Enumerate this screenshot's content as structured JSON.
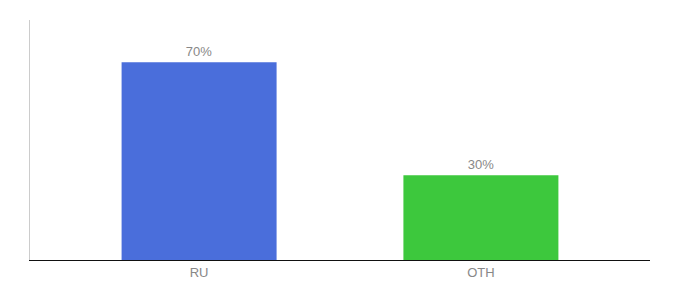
{
  "chart_data": {
    "type": "bar",
    "categories": [
      "RU",
      "OTH"
    ],
    "values": [
      70,
      30
    ],
    "value_labels": [
      "70%",
      "30%"
    ],
    "colors": [
      "#4a6edb",
      "#3dc83d"
    ],
    "ylim": [
      0,
      85
    ],
    "data_labels": true,
    "tick_labels": "x",
    "grid": false
  }
}
